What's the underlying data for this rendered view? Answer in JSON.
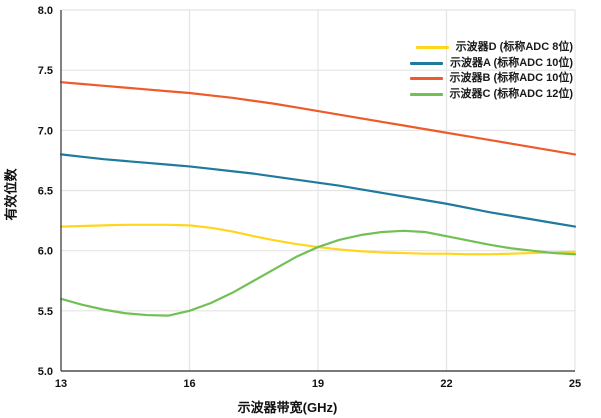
{
  "chart_data": {
    "type": "line",
    "title": "",
    "xlabel": "示波器带宽(GHz)",
    "ylabel": "有效位数",
    "xlim": [
      13,
      25
    ],
    "ylim": [
      5.0,
      8.0
    ],
    "x_ticks": [
      13,
      16,
      19,
      22,
      25
    ],
    "y_ticks": [
      5.0,
      5.5,
      6.0,
      6.5,
      7.0,
      7.5,
      8.0
    ],
    "grid": true,
    "legend_position": "upper-right-inside",
    "colors": {
      "grid": "#e4e4e4",
      "axis": "#4d4d4d",
      "text": "#111111",
      "background": "#ffffff"
    },
    "x": [
      13,
      13.5,
      14,
      14.5,
      15,
      15.5,
      16,
      16.5,
      17,
      17.5,
      18,
      18.5,
      19,
      19.5,
      20,
      20.5,
      21,
      21.5,
      22,
      22.5,
      23,
      23.5,
      24,
      24.5,
      25
    ],
    "series": [
      {
        "name": "示波器D (标称ADC 8位)",
        "color": "#ffd61c",
        "values": [
          6.2,
          6.205,
          6.21,
          6.215,
          6.215,
          6.215,
          6.21,
          6.19,
          6.16,
          6.12,
          6.085,
          6.055,
          6.03,
          6.01,
          5.995,
          5.985,
          5.98,
          5.975,
          5.975,
          5.97,
          5.97,
          5.975,
          5.98,
          5.985,
          5.99
        ]
      },
      {
        "name": "示波器A (标称ADC 10位)",
        "color": "#1f7a9e",
        "values": [
          6.8,
          6.78,
          6.76,
          6.745,
          6.73,
          6.715,
          6.7,
          6.68,
          6.66,
          6.64,
          6.615,
          6.59,
          6.565,
          6.54,
          6.51,
          6.48,
          6.45,
          6.42,
          6.39,
          6.355,
          6.32,
          6.29,
          6.26,
          6.23,
          6.2
        ]
      },
      {
        "name": "示波器B (标称ADC 10位)",
        "color": "#ef5a2b",
        "values": [
          7.4,
          7.385,
          7.37,
          7.355,
          7.34,
          7.325,
          7.31,
          7.29,
          7.27,
          7.245,
          7.22,
          7.19,
          7.16,
          7.13,
          7.1,
          7.07,
          7.04,
          7.01,
          6.98,
          6.95,
          6.92,
          6.89,
          6.86,
          6.83,
          6.8
        ]
      },
      {
        "name": "示波器C (标称ADC 12位)",
        "color": "#72c055",
        "values": [
          5.6,
          5.55,
          5.51,
          5.48,
          5.465,
          5.46,
          5.5,
          5.565,
          5.65,
          5.75,
          5.85,
          5.95,
          6.03,
          6.09,
          6.13,
          6.155,
          6.165,
          6.155,
          6.12,
          6.085,
          6.05,
          6.02,
          6.0,
          5.98,
          5.97
        ]
      }
    ]
  }
}
